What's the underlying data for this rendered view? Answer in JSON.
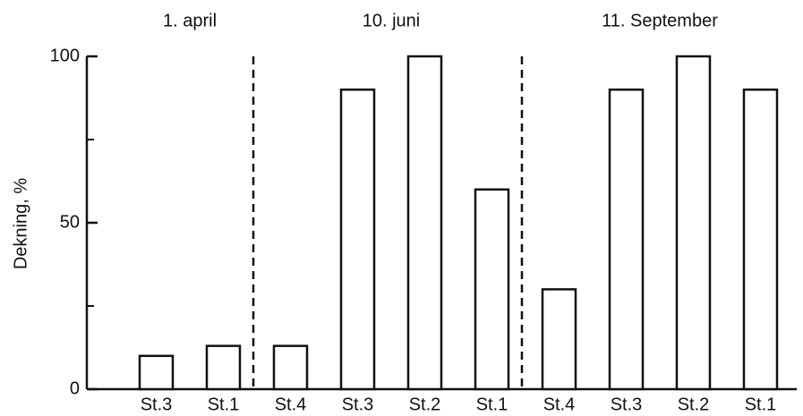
{
  "chart_data": {
    "type": "bar",
    "y_label": "Dekning, %",
    "groups": [
      {
        "name": "1. april",
        "categories": [
          "St.3",
          "St.1"
        ],
        "values": [
          10,
          13
        ]
      },
      {
        "name": "10. juni",
        "categories": [
          "St.4",
          "St.3",
          "St.2",
          "St.1"
        ],
        "values": [
          13,
          90,
          100,
          60
        ]
      },
      {
        "name": "11. September",
        "categories": [
          "St.4",
          "St.3",
          "St.2",
          "St.1"
        ],
        "values": [
          30,
          90,
          100,
          90
        ]
      }
    ],
    "ylim": [
      0,
      100
    ],
    "yticks": [
      0,
      50,
      100
    ],
    "yminorticks": [
      25,
      75
    ],
    "color": "#ffffff",
    "edge_color": "#111111",
    "group_separator": "dashed"
  }
}
